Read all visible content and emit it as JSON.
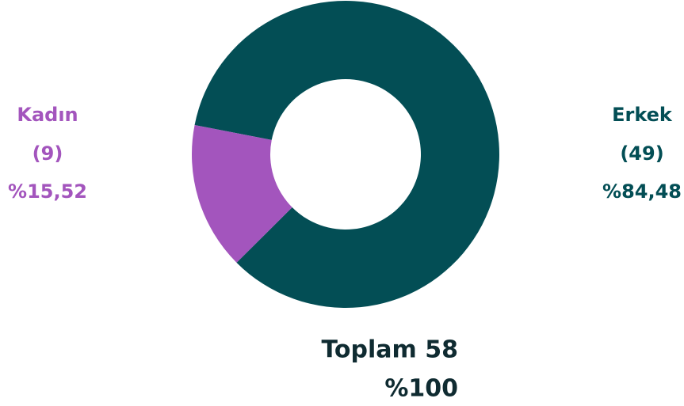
{
  "chart_data": {
    "type": "pie",
    "categories": [
      "Erkek",
      "Kadın"
    ],
    "values": [
      49,
      9
    ],
    "value_labels": [
      "(49)",
      "(9)"
    ],
    "percent_labels": [
      "%84,48",
      "%15,52"
    ],
    "colors": [
      "#034e55",
      "#a355bd"
    ],
    "total_label": "Toplam 58",
    "total_percent_label": "%100"
  }
}
